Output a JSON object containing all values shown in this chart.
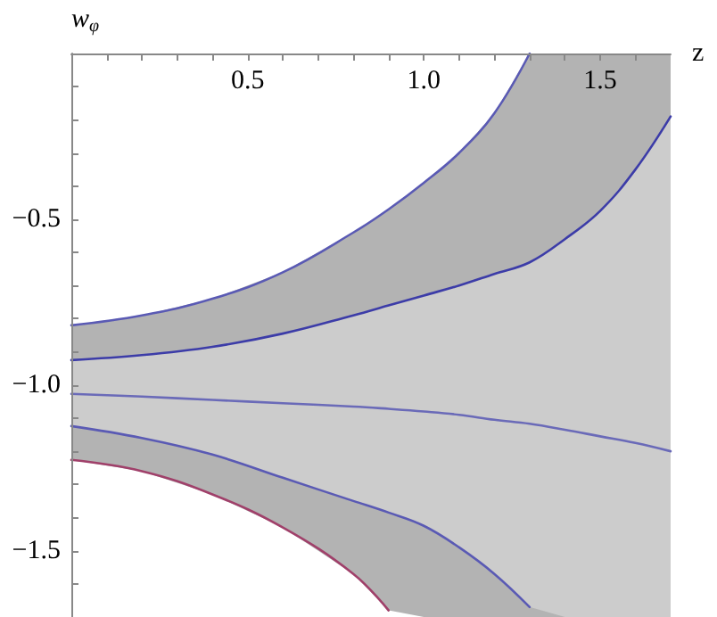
{
  "chart_data": {
    "type": "line",
    "xlabel": "z",
    "ylabel": "w$_{φ}$",
    "grid": false,
    "marker": "none",
    "line_style": "solid",
    "x": [
      0,
      0.2,
      0.4,
      0.6,
      0.8,
      0.9,
      1.0,
      1.1,
      1.2,
      1.3,
      1.4,
      1.5,
      1.6,
      1.7
    ],
    "xlim": [
      0,
      1.7
    ],
    "ylim": [
      -1.7,
      0
    ],
    "xticks": [
      {
        "value": 0.1,
        "label": null
      },
      {
        "value": 0.2,
        "label": null
      },
      {
        "value": 0.3,
        "label": null
      },
      {
        "value": 0.4,
        "label": null
      },
      {
        "value": 0.5,
        "label": "0.5"
      },
      {
        "value": 0.6,
        "label": null
      },
      {
        "value": 0.7,
        "label": null
      },
      {
        "value": 0.8,
        "label": null
      },
      {
        "value": 0.9,
        "label": null
      },
      {
        "value": 1.0,
        "label": "1.0"
      },
      {
        "value": 1.1,
        "label": null
      },
      {
        "value": 1.2,
        "label": null
      },
      {
        "value": 1.3,
        "label": null
      },
      {
        "value": 1.4,
        "label": null
      },
      {
        "value": 1.5,
        "label": "1.5"
      },
      {
        "value": 1.6,
        "label": null
      }
    ],
    "yticks": [
      {
        "value": -0.1,
        "label": null
      },
      {
        "value": -0.2,
        "label": null
      },
      {
        "value": -0.3,
        "label": null
      },
      {
        "value": -0.4,
        "label": null
      },
      {
        "value": -0.5,
        "label": "−0.5"
      },
      {
        "value": -0.6,
        "label": null
      },
      {
        "value": -0.7,
        "label": null
      },
      {
        "value": -0.8,
        "label": null
      },
      {
        "value": -0.9,
        "label": null
      },
      {
        "value": -1.0,
        "label": "−1.0"
      },
      {
        "value": -1.1,
        "label": null
      },
      {
        "value": -1.2,
        "label": null
      },
      {
        "value": -1.3,
        "label": null
      },
      {
        "value": -1.4,
        "label": null
      },
      {
        "value": -1.5,
        "label": "−1.5"
      },
      {
        "value": -1.6,
        "label": null
      }
    ],
    "series": [
      {
        "color": "#b3b3b3",
        "values": [
          null,
          null,
          null,
          null,
          null,
          null,
          null,
          null,
          null,
          null,
          null,
          null,
          null,
          null
        ],
        "lower": [
          -1.226,
          -1.26,
          -1.33,
          -1.43,
          -1.57,
          -1.68,
          -1.7,
          -1.7,
          -1.7,
          -1.7,
          -1.7,
          -1.7,
          -1.7,
          -1.7
        ],
        "upper": [
          -0.82,
          -0.79,
          -0.74,
          -0.66,
          -0.54,
          -0.47,
          -0.39,
          -0.3,
          -0.18,
          0,
          0,
          0,
          0,
          0
        ]
      },
      {
        "color": "#cccccc",
        "values": [
          null,
          null,
          null,
          null,
          null,
          null,
          null,
          null,
          null,
          null,
          null,
          null,
          null,
          null
        ],
        "lower": [
          -1.124,
          -1.16,
          -1.21,
          -1.28,
          -1.35,
          -1.385,
          -1.425,
          -1.49,
          -1.57,
          -1.67,
          -1.7,
          -1.7,
          -1.7,
          -1.7
        ],
        "upper": [
          -0.925,
          -0.91,
          -0.885,
          -0.845,
          -0.79,
          -0.76,
          -0.73,
          -0.7,
          -0.665,
          -0.63,
          -0.56,
          -0.475,
          -0.35,
          -0.19
        ]
      },
      {
        "type": "line",
        "color": "#5a5ab4",
        "values": [
          -0.82,
          -0.79,
          -0.74,
          -0.66,
          -0.54,
          -0.47,
          -0.39,
          -0.3,
          -0.18,
          0,
          null,
          null,
          null,
          null
        ]
      },
      {
        "type": "line",
        "color": "#3c3ca8",
        "values": [
          -0.925,
          -0.91,
          -0.885,
          -0.845,
          -0.79,
          -0.76,
          -0.73,
          -0.7,
          -0.665,
          -0.63,
          -0.56,
          -0.475,
          -0.35,
          -0.19
        ]
      },
      {
        "type": "line",
        "color": "#6a6ab8",
        "values": [
          -1.027,
          -1.035,
          -1.045,
          -1.055,
          -1.065,
          -1.072,
          -1.08,
          -1.09,
          -1.105,
          -1.117,
          -1.135,
          -1.155,
          -1.175,
          -1.2
        ]
      },
      {
        "type": "line",
        "color": "#5a5ab4",
        "values": [
          -1.124,
          -1.16,
          -1.21,
          -1.28,
          -1.35,
          -1.385,
          -1.425,
          -1.49,
          -1.57,
          -1.67,
          null,
          null,
          null,
          null
        ]
      },
      {
        "color": "#a0406a",
        "values": [
          -1.226,
          -1.26,
          -1.33,
          -1.43,
          -1.57,
          -1.68,
          null,
          null,
          null,
          null,
          null,
          null,
          null,
          null
        ]
      }
    ]
  }
}
